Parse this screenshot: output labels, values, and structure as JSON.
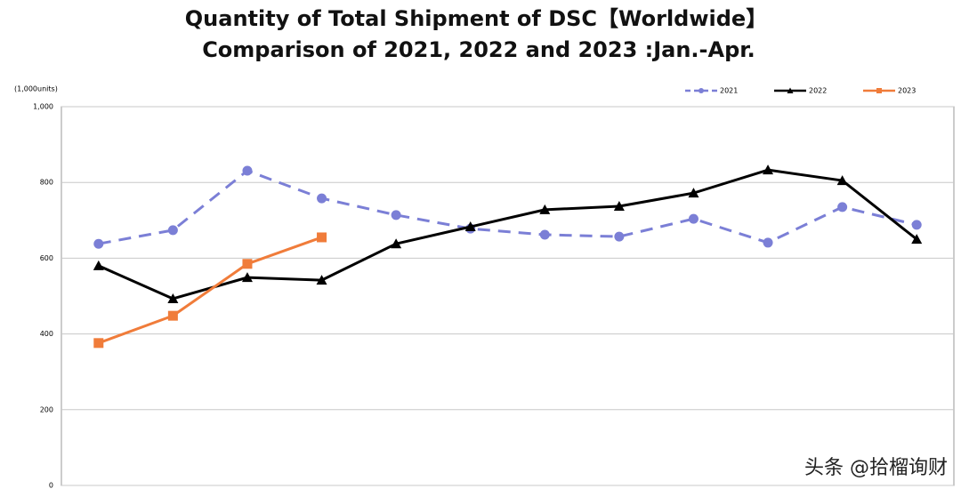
{
  "chart_data": {
    "type": "line",
    "title": "Quantity of Total Shipment of DSC【Worldwide】",
    "subtitle": "Comparison of 2021, 2022 and 2023 :Jan.-Apr.",
    "y_label": "(1,000units)",
    "categories": [
      null,
      null,
      null,
      null,
      null,
      null,
      null,
      null,
      null,
      null,
      null,
      null
    ],
    "series": [
      {
        "name": "2021",
        "color": "#7b7fd6",
        "marker": "circle",
        "dashed": true,
        "values": [
          638,
          674,
          831,
          758,
          714,
          678,
          662,
          657,
          704,
          641,
          735,
          688
        ]
      },
      {
        "name": "2022",
        "color": "#000000",
        "marker": "triangle",
        "dashed": false,
        "values": [
          580,
          493,
          549,
          542,
          638,
          683,
          728,
          737,
          772,
          833,
          805,
          650
        ]
      },
      {
        "name": "2023",
        "color": "#f07c3a",
        "marker": "square",
        "dashed": false,
        "values": [
          376,
          448,
          585,
          655,
          null,
          null,
          null,
          null,
          null,
          null,
          null,
          null
        ]
      }
    ],
    "ylim": [
      0,
      1000
    ],
    "yticks": [
      0,
      200,
      400,
      600,
      800,
      {
        "value": 1000,
        "label": "1,000"
      }
    ],
    "grid": true,
    "legend": "top-right",
    "watermark": "头条 @拾榴询财"
  }
}
